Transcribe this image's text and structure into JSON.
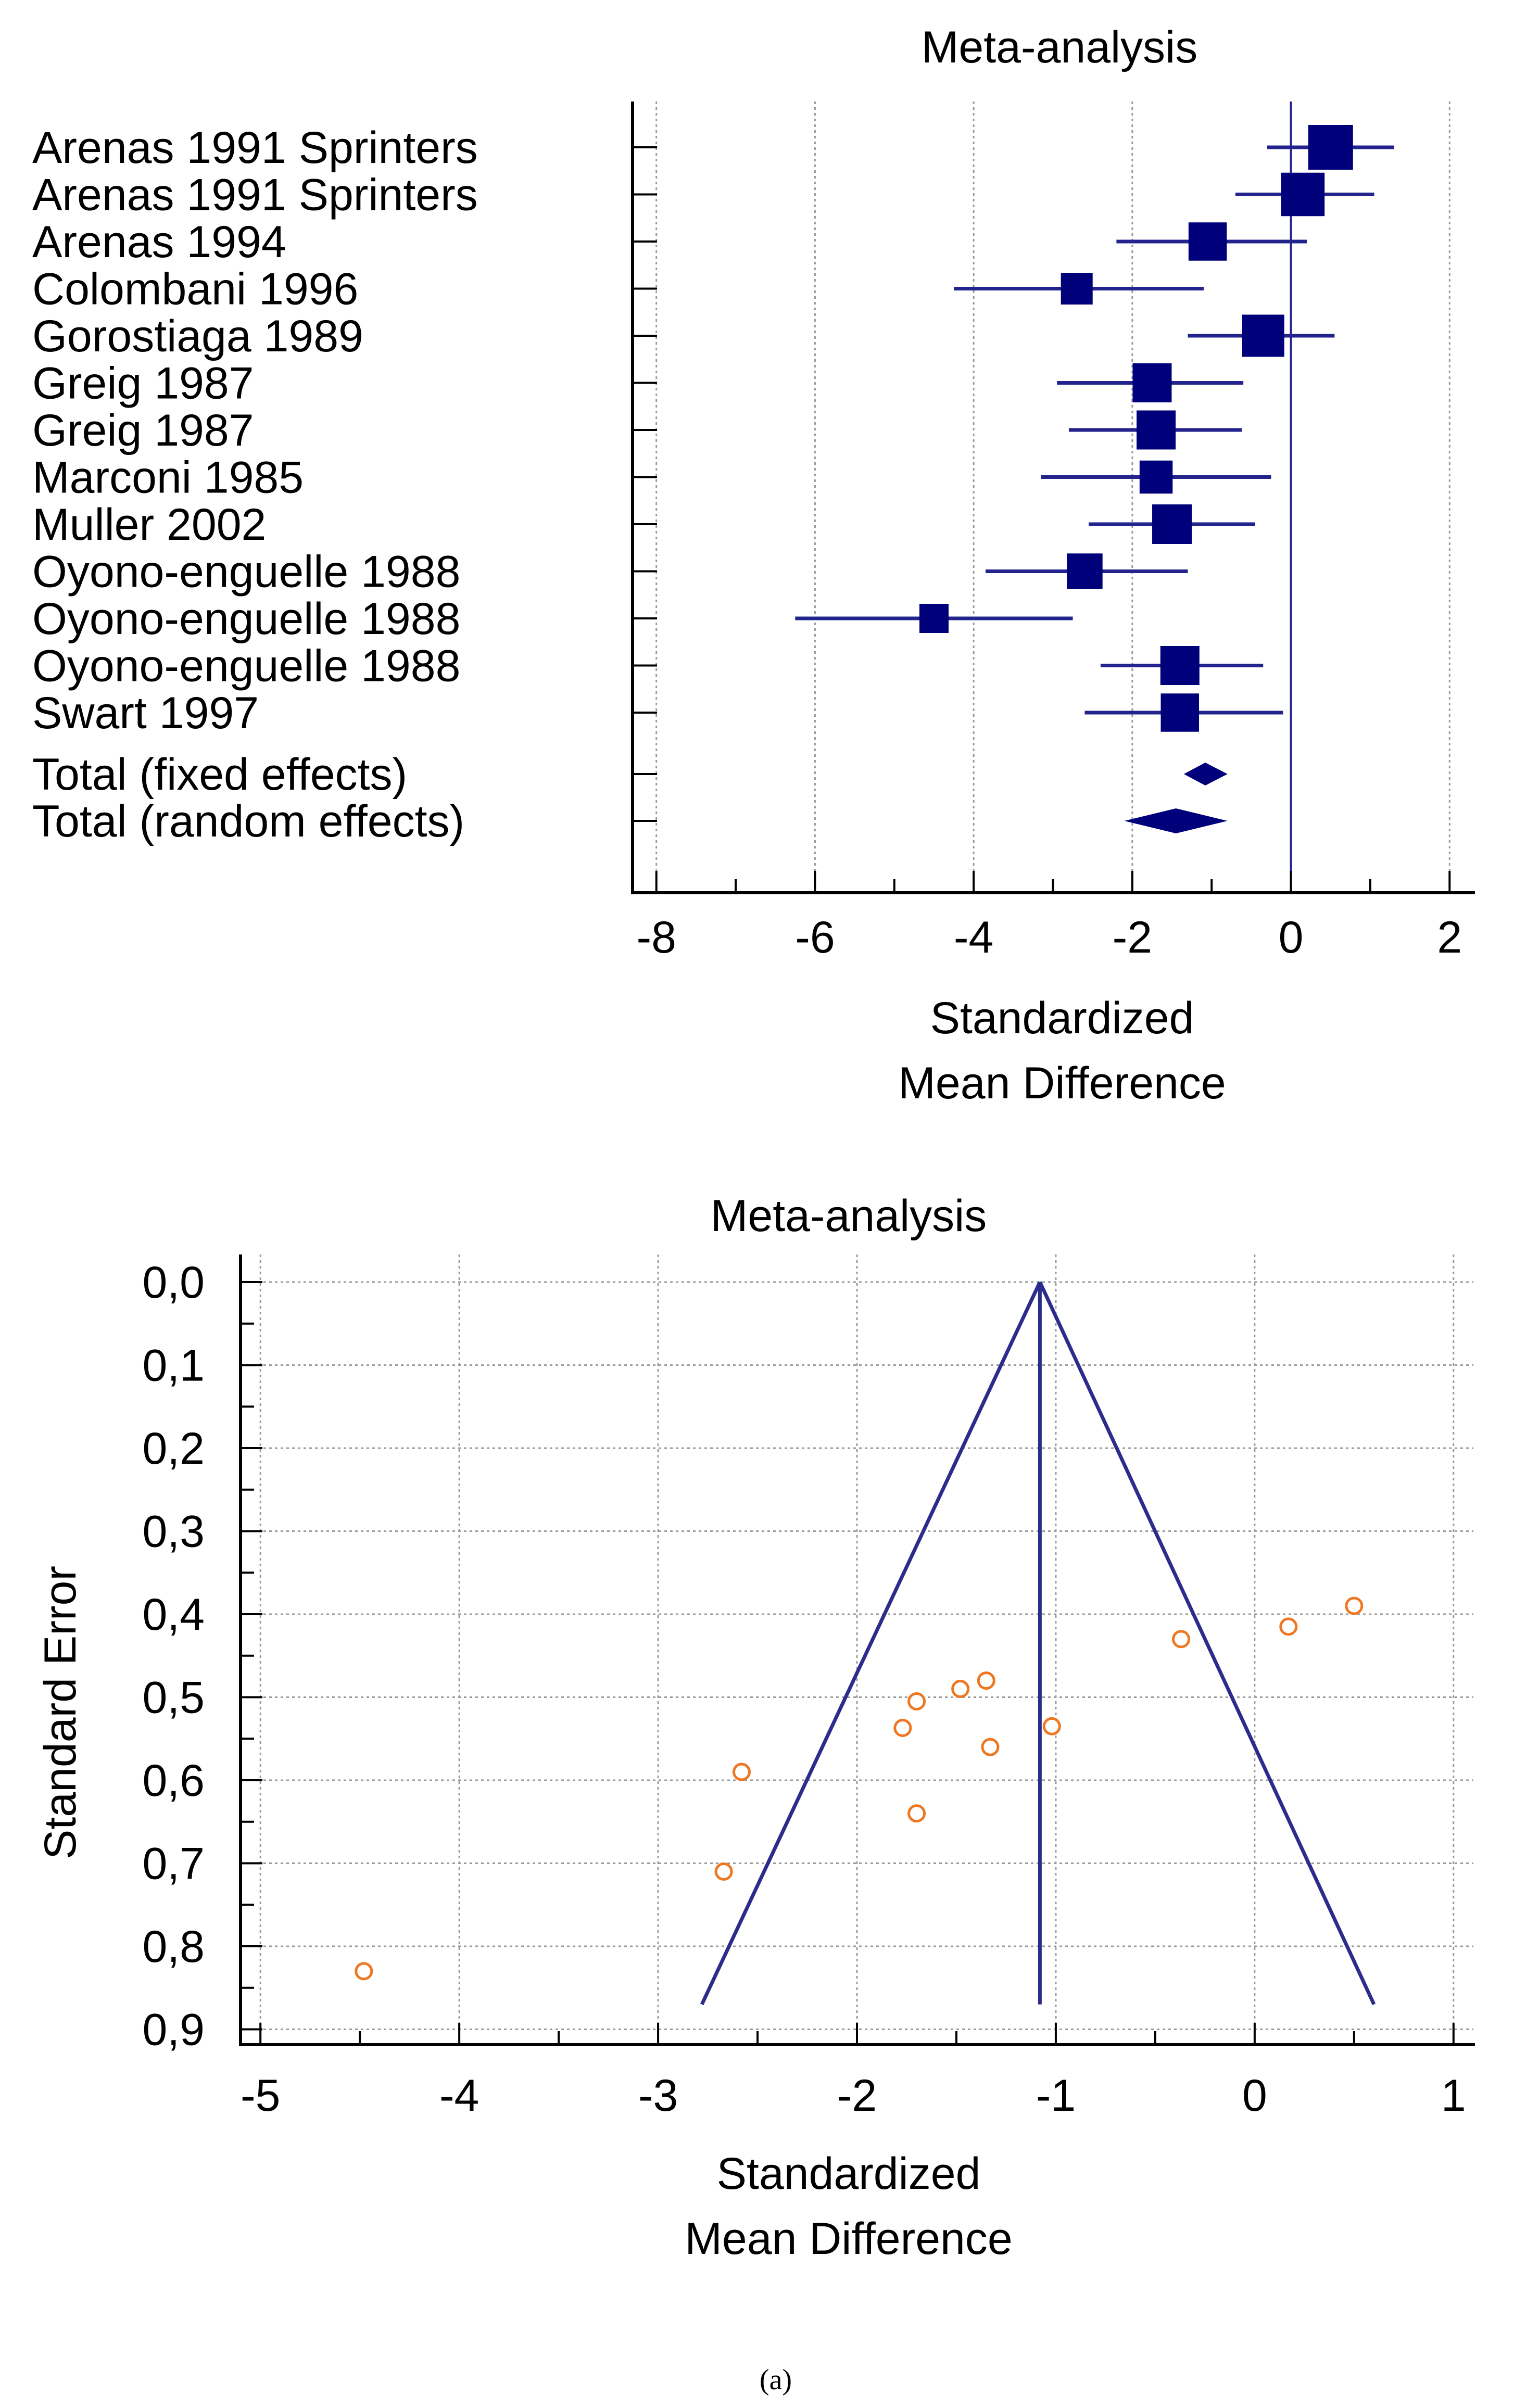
{
  "chart_data": [
    {
      "type": "forest",
      "title": "Meta-analysis",
      "xlabel_line1": "Standardized",
      "xlabel_line2": "Mean Difference",
      "xlim": [
        -8.3,
        2.3
      ],
      "xticks": [
        -8,
        -6,
        -4,
        -2,
        0,
        2
      ],
      "xtick_labels": [
        "-8",
        "-6",
        "-4",
        "-2",
        "0",
        "2"
      ],
      "studies": [
        {
          "label": "Arenas 1991 Sprinters",
          "smd": 0.5,
          "lo": -0.3,
          "hi": 1.3,
          "weight": 1.0
        },
        {
          "label": "Arenas 1991 Sprinters",
          "smd": 0.15,
          "lo": -0.7,
          "hi": 1.05,
          "weight": 0.95
        },
        {
          "label": "Arenas 1994",
          "smd": -1.05,
          "lo": -2.2,
          "hi": 0.2,
          "weight": 0.75
        },
        {
          "label": "Colombani 1996",
          "smd": -2.7,
          "lo": -4.25,
          "hi": -1.1,
          "weight": 0.5
        },
        {
          "label": "Gorostiaga 1989",
          "smd": -0.35,
          "lo": -1.3,
          "hi": 0.55,
          "weight": 0.9
        },
        {
          "label": "Greig 1987",
          "smd": -1.75,
          "lo": -2.95,
          "hi": -0.6,
          "weight": 0.78
        },
        {
          "label": "Greig 1987",
          "smd": -1.7,
          "lo": -2.8,
          "hi": -0.62,
          "weight": 0.78
        },
        {
          "label": "Marconi 1985",
          "smd": -1.7,
          "lo": -3.15,
          "hi": -0.25,
          "weight": 0.55
        },
        {
          "label": "Muller 2002",
          "smd": -1.5,
          "lo": -2.55,
          "hi": -0.45,
          "weight": 0.8
        },
        {
          "label": "Oyono-enguelle 1988",
          "smd": -2.6,
          "lo": -3.85,
          "hi": -1.3,
          "weight": 0.65
        },
        {
          "label": "Oyono-enguelle 1988",
          "smd": -4.5,
          "lo": -6.25,
          "hi": -2.75,
          "weight": 0.4
        },
        {
          "label": "Oyono-enguelle 1988",
          "smd": -1.4,
          "lo": -2.4,
          "hi": -0.35,
          "weight": 0.78
        },
        {
          "label": "Swart 1997",
          "smd": -1.4,
          "lo": -2.6,
          "hi": -0.1,
          "weight": 0.75
        }
      ],
      "totals": [
        {
          "label": "Total (fixed effects)",
          "smd": -1.08,
          "lo": -1.35,
          "hi": -0.8
        },
        {
          "label": "Total (random effects)",
          "smd": -1.45,
          "lo": -2.1,
          "hi": -0.8
        }
      ]
    },
    {
      "type": "scatter",
      "title": "Meta-analysis",
      "xlabel_line1": "Standardized",
      "xlabel_line2": "Mean Difference",
      "ylabel": "Standard Error",
      "xlim": [
        -5.1,
        1.1
      ],
      "ylim": [
        0.0,
        0.93
      ],
      "xticks": [
        -5,
        -4,
        -3,
        -2,
        -1,
        0,
        1
      ],
      "xtick_labels": [
        "-5",
        "-4",
        "-3",
        "-2",
        "-1",
        "0",
        "1"
      ],
      "yticks": [
        0.0,
        0.1,
        0.2,
        0.3,
        0.4,
        0.5,
        0.6,
        0.7,
        0.8,
        0.9
      ],
      "ytick_labels": [
        "0,0",
        "0,1",
        "0,2",
        "0,3",
        "0,4",
        "0,5",
        "0,6",
        "0,7",
        "0,8",
        "0,9"
      ],
      "pooled_estimate": -1.08,
      "funnel_base_se": 0.87,
      "funnel_base_x": [
        -2.78,
        0.6
      ],
      "points": [
        {
          "x": 0.5,
          "y": 0.39
        },
        {
          "x": 0.17,
          "y": 0.415
        },
        {
          "x": -0.37,
          "y": 0.43
        },
        {
          "x": -1.35,
          "y": 0.48
        },
        {
          "x": -1.48,
          "y": 0.49
        },
        {
          "x": -1.7,
          "y": 0.505
        },
        {
          "x": -1.02,
          "y": 0.535
        },
        {
          "x": -1.77,
          "y": 0.537
        },
        {
          "x": -1.33,
          "y": 0.56
        },
        {
          "x": -2.58,
          "y": 0.59
        },
        {
          "x": -1.7,
          "y": 0.64
        },
        {
          "x": -2.67,
          "y": 0.71
        },
        {
          "x": -4.48,
          "y": 0.83
        }
      ]
    }
  ],
  "caption": "(a)",
  "colors": {
    "marker": "#00007a",
    "ci_line": "#23238e",
    "funnel_line": "#2c2c8c",
    "point": "#ee7722",
    "axis": "#000000",
    "grid": "#9a9a9a"
  }
}
